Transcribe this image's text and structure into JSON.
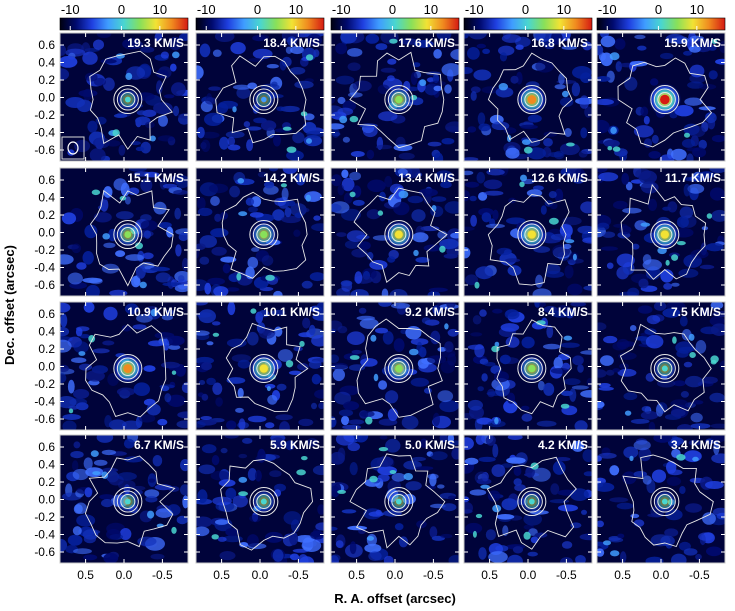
{
  "figure": {
    "colorbar": {
      "ticks": [
        "-10",
        "0",
        "10"
      ],
      "colormap": [
        "#000010",
        "#000a6e",
        "#1f3fe0",
        "#3f9cff",
        "#49d6d0",
        "#88e05a",
        "#f2e234",
        "#f08a1f",
        "#d51a12"
      ]
    },
    "panels": [
      {
        "velocity": "19.3 KM/S",
        "peak": 0.3
      },
      {
        "velocity": "18.4 KM/S",
        "peak": 0.25
      },
      {
        "velocity": "17.6 KM/S",
        "peak": 0.55
      },
      {
        "velocity": "16.8 KM/S",
        "peak": 0.75
      },
      {
        "velocity": "15.9 KM/S",
        "peak": 0.95
      },
      {
        "velocity": "15.1 KM/S",
        "peak": 0.45
      },
      {
        "velocity": "14.2 KM/S",
        "peak": 0.55
      },
      {
        "velocity": "13.4 KM/S",
        "peak": 0.65
      },
      {
        "velocity": "12.6 KM/S",
        "peak": 0.7
      },
      {
        "velocity": "11.7 KM/S",
        "peak": 0.7
      },
      {
        "velocity": "10.9 KM/S",
        "peak": 0.75
      },
      {
        "velocity": "10.1 KM/S",
        "peak": 0.7
      },
      {
        "velocity": "9.2 KM/S",
        "peak": 0.55
      },
      {
        "velocity": "8.4 KM/S",
        "peak": 0.55
      },
      {
        "velocity": "7.5 KM/S",
        "peak": 0.35
      },
      {
        "velocity": "6.7 KM/S",
        "peak": 0.3
      },
      {
        "velocity": "5.9 KM/S",
        "peak": 0.35
      },
      {
        "velocity": "5.0 KM/S",
        "peak": 0.3
      },
      {
        "velocity": "4.2 KM/S",
        "peak": 0.3
      },
      {
        "velocity": "3.4 KM/S",
        "peak": 0.3
      }
    ],
    "y_axis": {
      "label": "Dec. offset (arcsec)",
      "ticks": [
        "0.6",
        "0.4",
        "0.2",
        "0.0",
        "-0.2",
        "-0.4",
        "-0.6"
      ]
    },
    "x_axis": {
      "label": "R. A. offset (arcsec)",
      "ticks": [
        "0.5",
        "0.0",
        "-0.5"
      ]
    }
  }
}
